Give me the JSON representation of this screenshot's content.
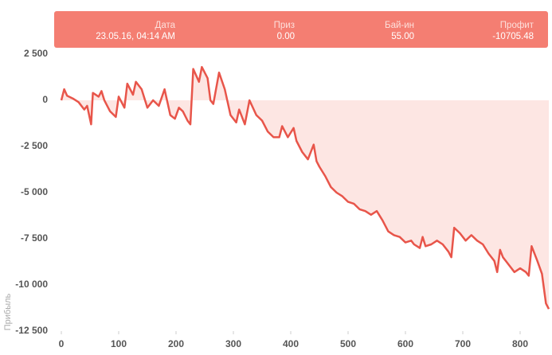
{
  "tooltip": {
    "columns": [
      {
        "label": "Дата",
        "value": "23.05.16, 04:14 AM"
      },
      {
        "label": "Приз",
        "value": "0.00"
      },
      {
        "label": "Бай-ин",
        "value": "55.00"
      },
      {
        "label": "Профит",
        "value": "-10705.48"
      }
    ]
  },
  "chart_data": {
    "type": "area",
    "y_label": "Прибыль",
    "color": "#e8554a",
    "fill": "#fde6e3",
    "x": [
      0,
      5,
      10,
      20,
      30,
      40,
      45,
      52,
      55,
      65,
      70,
      75,
      85,
      95,
      100,
      110,
      115,
      125,
      130,
      140,
      150,
      160,
      170,
      180,
      190,
      198,
      205,
      212,
      220,
      225,
      230,
      240,
      245,
      255,
      260,
      265,
      275,
      285,
      295,
      305,
      310,
      320,
      328,
      340,
      350,
      360,
      370,
      380,
      385,
      395,
      405,
      410,
      420,
      430,
      440,
      445,
      450,
      460,
      470,
      480,
      490,
      500,
      510,
      520,
      530,
      540,
      550,
      560,
      570,
      580,
      590,
      600,
      610,
      615,
      625,
      630,
      635,
      645,
      655,
      665,
      675,
      680,
      685,
      695,
      705,
      715,
      725,
      735,
      745,
      755,
      760,
      765,
      770,
      780,
      790,
      800,
      810,
      815,
      820,
      830,
      838,
      845,
      850
    ],
    "values": [
      0,
      600,
      250,
      100,
      -100,
      -500,
      -300,
      -1300,
      400,
      200,
      500,
      0,
      -600,
      -900,
      200,
      -400,
      900,
      300,
      1000,
      600,
      -400,
      0,
      -300,
      600,
      -800,
      -1000,
      -400,
      -600,
      -1100,
      -1300,
      1700,
      1000,
      1800,
      1200,
      0,
      -200,
      1500,
      600,
      -800,
      -1200,
      -500,
      -1300,
      0,
      -800,
      -1100,
      -1700,
      -2000,
      -2000,
      -1400,
      -2000,
      -1500,
      -2200,
      -2800,
      -3200,
      -2400,
      -3300,
      -3600,
      -4100,
      -4700,
      -5000,
      -5200,
      -5500,
      -5600,
      -5900,
      -6000,
      -6200,
      -6000,
      -6500,
      -7100,
      -7300,
      -7400,
      -7700,
      -7600,
      -7800,
      -8000,
      -7400,
      -7900,
      -7800,
      -7600,
      -7800,
      -8200,
      -8500,
      -6900,
      -7200,
      -7600,
      -7300,
      -7600,
      -7800,
      -8300,
      -8700,
      -9300,
      -8100,
      -8500,
      -8900,
      -9300,
      -9100,
      -9300,
      -9500,
      -7900,
      -8700,
      -9400,
      -11000,
      -11300
    ],
    "xlim": [
      0,
      850
    ],
    "ylim": [
      -12500,
      2500
    ],
    "xticks": [
      0,
      100,
      200,
      300,
      400,
      500,
      600,
      700,
      800
    ],
    "yticks": [
      {
        "value": 2500,
        "label": "2 500"
      },
      0,
      {
        "value": -2500,
        "label": "-2 500"
      },
      {
        "value": -5000,
        "label": "-5 000"
      },
      {
        "value": -7500,
        "label": "-7 500"
      },
      {
        "value": -10000,
        "label": "-10 000"
      },
      {
        "value": -12500,
        "label": "-12 500"
      }
    ]
  }
}
